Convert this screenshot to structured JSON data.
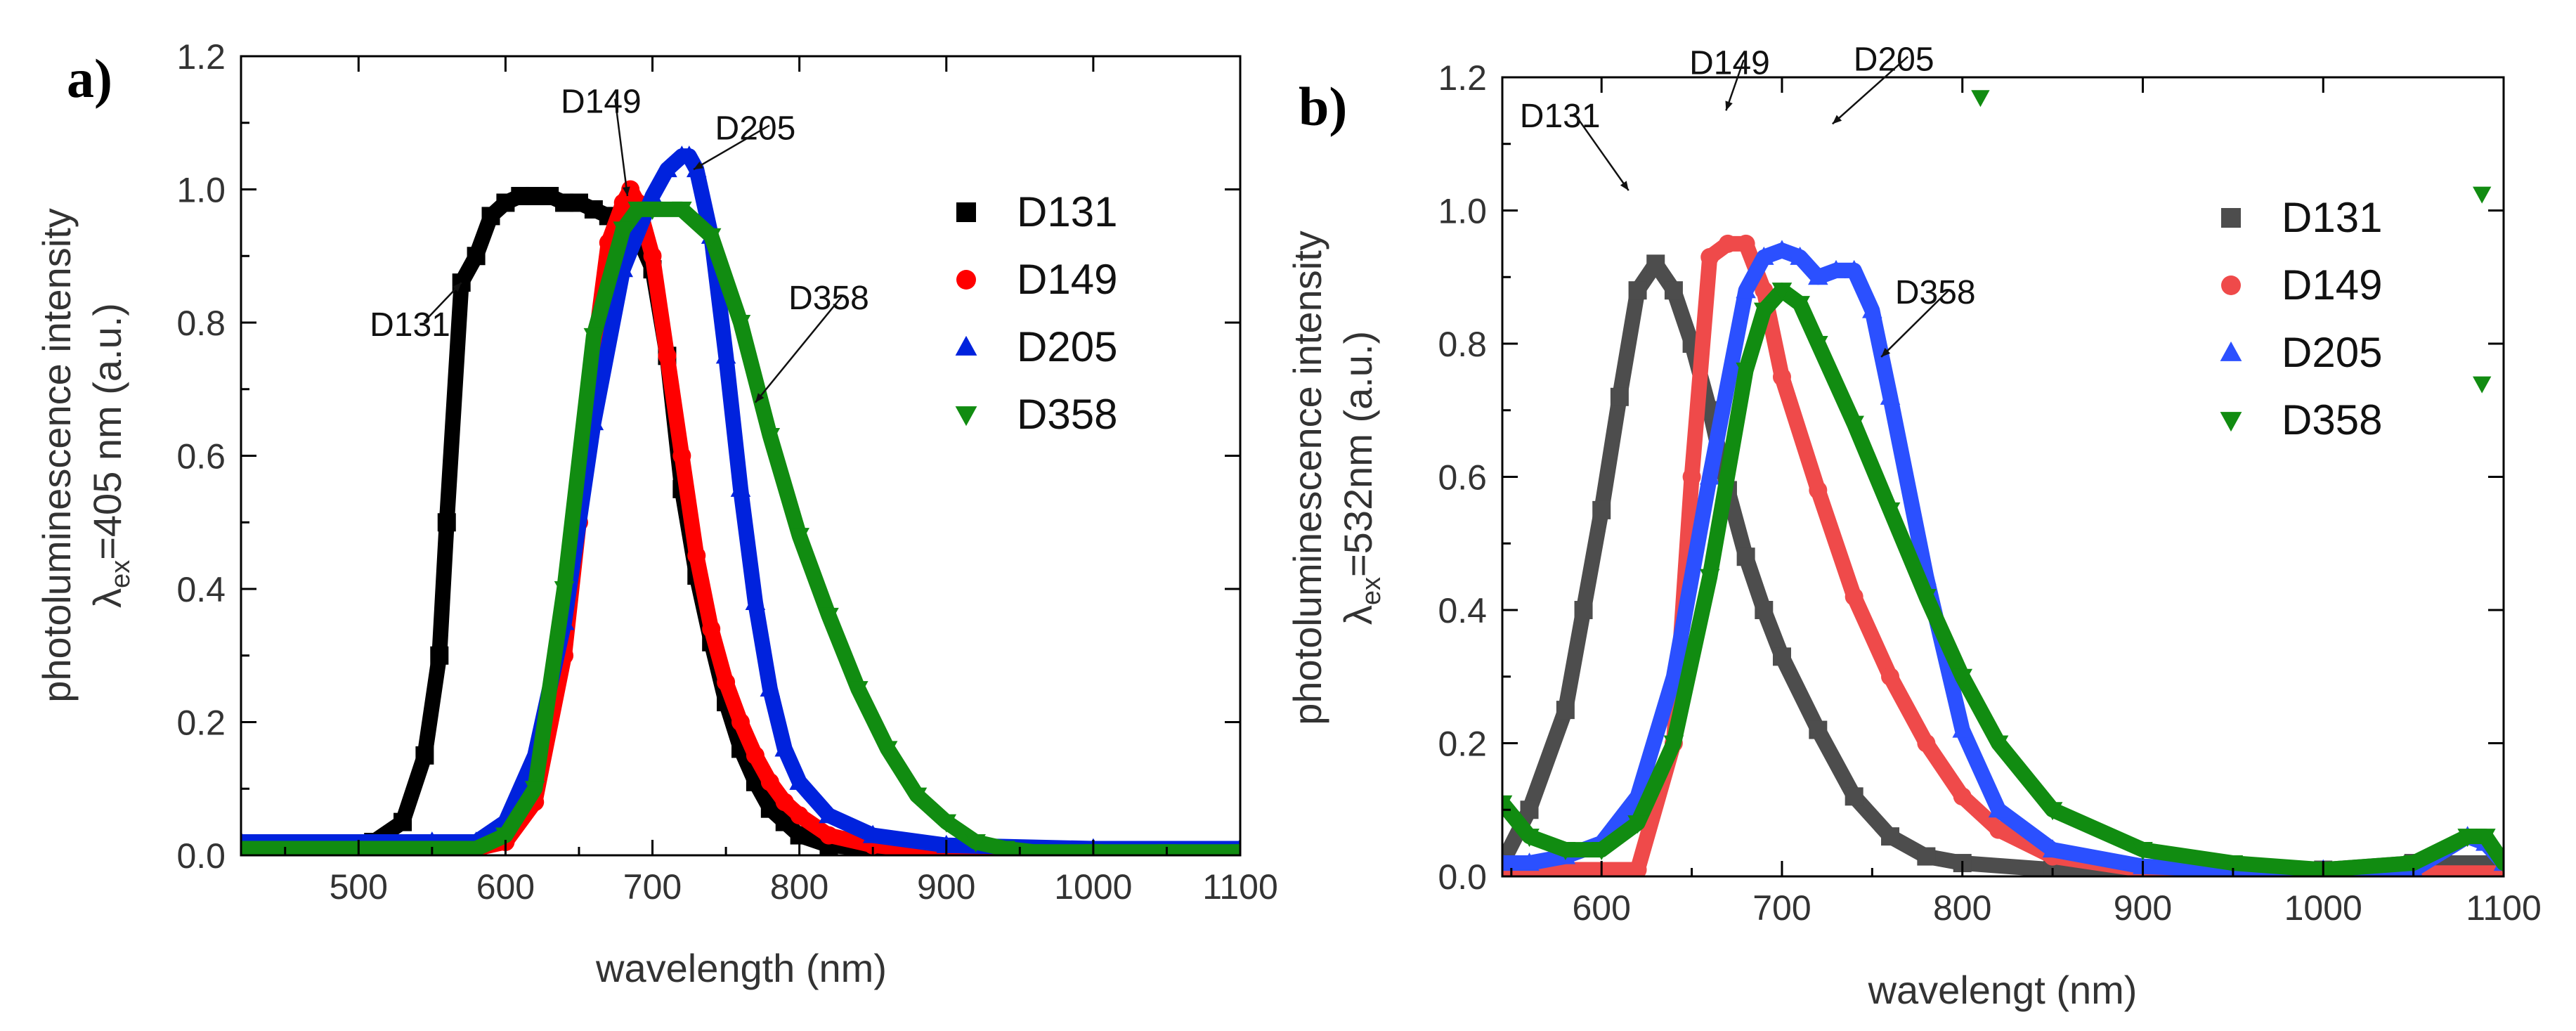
{
  "figure": {
    "panel_a_label": "a)",
    "panel_b_label": "b)"
  },
  "colors": {
    "D131_a": "#000000",
    "D131_b": "#4d4d4d",
    "D149_a": "#ff0000",
    "D149_b": "#ef4a4a",
    "D205_a": "#0022dd",
    "D205_b": "#2b50ff",
    "D358": "#118c11"
  },
  "chart_data": [
    {
      "type": "scatter",
      "panel": "a)",
      "title": "",
      "xlabel": "wavelength (nm)",
      "ylabel_top": "photoluminescence intensity",
      "ylabel_lambda": "λ",
      "ylabel_sub": "ex",
      "ylabel_rest": "=405 nm (a.u.)",
      "xlim": [
        420,
        1100
      ],
      "ylim": [
        0.0,
        1.2
      ],
      "xticks": [
        500,
        600,
        700,
        800,
        900,
        1000,
        1100
      ],
      "xtick_labels": [
        "500",
        "600",
        "700",
        "800",
        "900",
        "1000",
        "1100"
      ],
      "yticks": [
        0.0,
        0.2,
        0.4,
        0.6,
        0.8,
        1.0,
        1.2
      ],
      "ytick_labels": [
        "0.0",
        "0.2",
        "0.4",
        "0.6",
        "0.8",
        "1.0",
        "1.2"
      ],
      "legend_position": "upper-right",
      "series": [
        {
          "name": "D131",
          "marker": "square",
          "color_key": "D131_a",
          "x": [
            420,
            480,
            510,
            530,
            545,
            555,
            560,
            570,
            580,
            590,
            600,
            610,
            620,
            630,
            640,
            650,
            660,
            670,
            680,
            690,
            700,
            710,
            720,
            730,
            740,
            750,
            760,
            770,
            780,
            790,
            800,
            820,
            850,
            900,
            1000,
            1100
          ],
          "y": [
            0.01,
            0.01,
            0.02,
            0.05,
            0.15,
            0.3,
            0.5,
            0.86,
            0.9,
            0.96,
            0.98,
            0.99,
            0.99,
            0.99,
            0.98,
            0.98,
            0.97,
            0.96,
            0.95,
            0.93,
            0.88,
            0.75,
            0.55,
            0.42,
            0.32,
            0.23,
            0.16,
            0.11,
            0.07,
            0.05,
            0.03,
            0.015,
            0.01,
            0.005,
            0.005,
            0.005
          ]
        },
        {
          "name": "D149",
          "marker": "circle",
          "color_key": "D149_a",
          "x": [
            420,
            580,
            600,
            620,
            640,
            650,
            660,
            670,
            680,
            685,
            690,
            700,
            710,
            720,
            730,
            740,
            750,
            760,
            770,
            780,
            790,
            800,
            820,
            850,
            900,
            1000,
            1100
          ],
          "y": [
            0.01,
            0.01,
            0.02,
            0.08,
            0.3,
            0.5,
            0.75,
            0.92,
            0.98,
            1.0,
            0.98,
            0.9,
            0.75,
            0.6,
            0.45,
            0.34,
            0.26,
            0.2,
            0.15,
            0.11,
            0.08,
            0.06,
            0.03,
            0.015,
            0.005,
            0.005,
            0.005
          ]
        },
        {
          "name": "D205",
          "marker": "triangle-up",
          "color_key": "D205_a",
          "x": [
            420,
            550,
            580,
            600,
            620,
            640,
            660,
            680,
            700,
            710,
            720,
            725,
            730,
            740,
            750,
            760,
            770,
            780,
            790,
            800,
            820,
            850,
            900,
            1000,
            1100
          ],
          "y": [
            0.02,
            0.02,
            0.02,
            0.05,
            0.15,
            0.35,
            0.65,
            0.88,
            0.99,
            1.03,
            1.05,
            1.05,
            1.03,
            0.93,
            0.75,
            0.55,
            0.38,
            0.25,
            0.16,
            0.11,
            0.06,
            0.03,
            0.015,
            0.01,
            0.01
          ]
        },
        {
          "name": "D358",
          "marker": "triangle-down",
          "color_key": "D358",
          "x": [
            420,
            580,
            600,
            620,
            640,
            660,
            680,
            690,
            700,
            720,
            740,
            760,
            780,
            800,
            820,
            840,
            860,
            880,
            900,
            920,
            940,
            960,
            1000,
            1050,
            1100
          ],
          "y": [
            0.01,
            0.01,
            0.03,
            0.1,
            0.4,
            0.78,
            0.94,
            0.97,
            0.97,
            0.97,
            0.93,
            0.8,
            0.63,
            0.48,
            0.36,
            0.25,
            0.16,
            0.09,
            0.05,
            0.02,
            0.01,
            0.005,
            0.005,
            0.005,
            0.005
          ]
        }
      ],
      "annotations": [
        {
          "text": "D131",
          "x": 535,
          "y": 0.78,
          "arrow_to": [
            570,
            0.86
          ]
        },
        {
          "text": "D149",
          "x": 665,
          "y": 1.115,
          "arrow_to": [
            683,
            0.99
          ]
        },
        {
          "text": "D205",
          "x": 770,
          "y": 1.075,
          "arrow_to": [
            728,
            1.03
          ]
        },
        {
          "text": "D358",
          "x": 820,
          "y": 0.82,
          "arrow_to": [
            770,
            0.68
          ]
        }
      ]
    },
    {
      "type": "scatter",
      "panel": "b)",
      "title": "",
      "xlabel": "wavelengt (nm)",
      "ylabel_top": "photoluminescence intensity",
      "ylabel_lambda": "λ",
      "ylabel_sub": "ex",
      "ylabel_rest": "=532nm (a.u.)",
      "xlim": [
        545,
        1100
      ],
      "ylim": [
        0.0,
        1.2
      ],
      "xticks": [
        600,
        700,
        800,
        900,
        1000,
        1100
      ],
      "xtick_labels": [
        "600",
        "700",
        "800",
        "900",
        "1000",
        "1100"
      ],
      "yticks": [
        0.0,
        0.2,
        0.4,
        0.6,
        0.8,
        1.0,
        1.2
      ],
      "ytick_labels": [
        "0.0",
        "0.2",
        "0.4",
        "0.6",
        "0.8",
        "1.0",
        "1.2"
      ],
      "legend_position": "upper-right",
      "series": [
        {
          "name": "D131",
          "marker": "square",
          "color_key": "D131_b",
          "x": [
            545,
            560,
            580,
            590,
            600,
            610,
            620,
            630,
            640,
            650,
            660,
            670,
            680,
            690,
            700,
            720,
            740,
            760,
            780,
            800,
            850,
            900,
            950,
            1000,
            1050,
            1100
          ],
          "y": [
            0.02,
            0.1,
            0.25,
            0.4,
            0.55,
            0.72,
            0.88,
            0.92,
            0.88,
            0.8,
            0.7,
            0.58,
            0.48,
            0.4,
            0.33,
            0.22,
            0.12,
            0.06,
            0.03,
            0.02,
            0.01,
            0.01,
            0.01,
            0.01,
            0.02,
            0.02
          ]
        },
        {
          "name": "D149",
          "marker": "circle",
          "color_key": "D149_b",
          "x": [
            545,
            620,
            640,
            650,
            660,
            670,
            680,
            690,
            700,
            720,
            740,
            760,
            780,
            800,
            820,
            850,
            900,
            950,
            1000,
            1100
          ],
          "y": [
            0.01,
            0.01,
            0.2,
            0.6,
            0.93,
            0.95,
            0.95,
            0.88,
            0.75,
            0.58,
            0.42,
            0.3,
            0.2,
            0.12,
            0.07,
            0.03,
            0.01,
            0.005,
            0.005,
            0.005
          ]
        },
        {
          "name": "D205",
          "marker": "triangle-up",
          "color_key": "D205_b",
          "x": [
            545,
            560,
            580,
            600,
            620,
            640,
            660,
            680,
            690,
            700,
            710,
            720,
            730,
            740,
            750,
            760,
            780,
            800,
            820,
            850,
            900,
            950,
            1000,
            1050,
            1080,
            1090,
            1100
          ],
          "y": [
            0.02,
            0.02,
            0.03,
            0.05,
            0.12,
            0.3,
            0.6,
            0.88,
            0.93,
            0.94,
            0.93,
            0.9,
            0.91,
            0.91,
            0.85,
            0.72,
            0.45,
            0.22,
            0.1,
            0.04,
            0.015,
            0.01,
            0.01,
            0.01,
            0.06,
            0.05,
            0.02
          ]
        },
        {
          "name": "D358",
          "marker": "triangle-down",
          "color_key": "D358",
          "x": [
            545,
            560,
            580,
            600,
            620,
            640,
            660,
            680,
            690,
            700,
            710,
            720,
            740,
            760,
            780,
            800,
            820,
            850,
            900,
            950,
            1000,
            1050,
            1080,
            1090,
            1100
          ],
          "y": [
            0.11,
            0.06,
            0.04,
            0.04,
            0.08,
            0.2,
            0.45,
            0.76,
            0.85,
            0.88,
            0.86,
            0.8,
            0.68,
            0.55,
            0.42,
            0.3,
            0.2,
            0.1,
            0.04,
            0.02,
            0.01,
            0.02,
            0.06,
            0.06,
            0.02
          ]
        }
      ],
      "stray_markers": [
        {
          "series": "D358",
          "x": 810,
          "y": 1.17
        },
        {
          "series": "D358",
          "x": 1088,
          "y": 1.025
        },
        {
          "series": "D358",
          "x": 1088,
          "y": 0.74
        }
      ],
      "annotations": [
        {
          "text": "D131",
          "x": 577,
          "y": 1.125,
          "arrow_to": [
            615,
            1.03
          ]
        },
        {
          "text": "D149",
          "x": 671,
          "y": 1.205,
          "arrow_to": [
            669,
            1.15
          ]
        },
        {
          "text": "D205",
          "x": 762,
          "y": 1.21,
          "arrow_to": [
            728,
            1.13
          ]
        },
        {
          "text": "D358",
          "x": 785,
          "y": 0.86,
          "arrow_to": [
            755,
            0.78
          ]
        }
      ]
    }
  ]
}
